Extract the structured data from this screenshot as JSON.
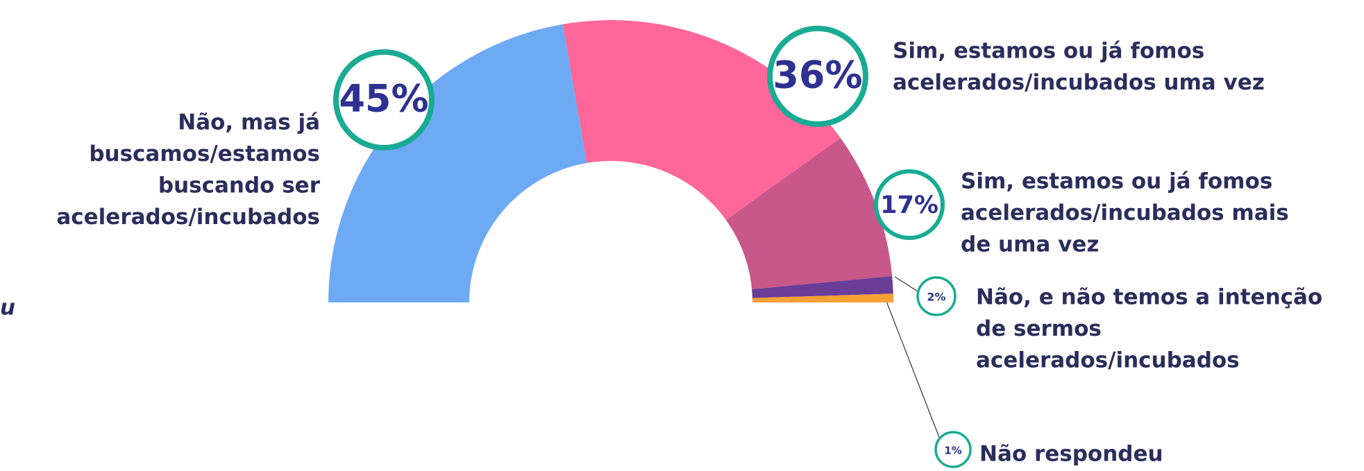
{
  "chart_data": {
    "type": "semi-donut",
    "categories": [
      [
        "Não, mas já",
        "buscamos/estamos",
        "buscando ser",
        "acelerados/incubados"
      ],
      [
        "Sim, estamos ou já fomos",
        "acelerados/incubados uma vez"
      ],
      [
        "Sim, estamos ou já fomos",
        "acelerados/incubados mais",
        "de uma vez"
      ],
      [
        "Não, e não temos a intenção",
        "de sermos",
        "acelerados/incubados"
      ],
      [
        "Não respondeu"
      ]
    ],
    "values": [
      45,
      36,
      17,
      2,
      1
    ],
    "value_labels": [
      "45%",
      "36%",
      "17%",
      "2%",
      "1%"
    ],
    "colors": [
      "#6eaaf4",
      "#ff6699",
      "#c8578a",
      "#6a3d96",
      "#f7a035"
    ],
    "annotation": "u"
  }
}
